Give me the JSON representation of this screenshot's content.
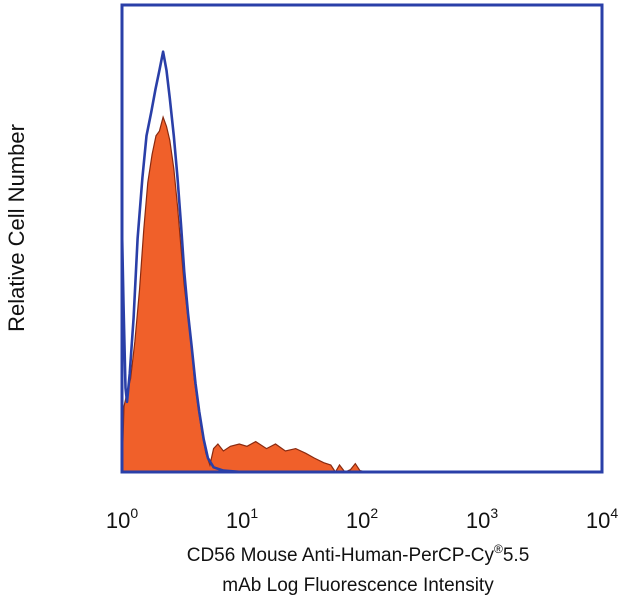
{
  "chart_data": {
    "type": "histogram-overlay",
    "ylabel": "Relative Cell Number",
    "xlabel_line1_main": "CD56 Mouse Anti-Human-PerCP-Cy",
    "xlabel_line1_sup": "®",
    "xlabel_line1_end": "5.5",
    "xlabel_line2": "mAb Log Fluorescence Intensity",
    "x_scale": "log",
    "xlim": [
      1,
      10000
    ],
    "ylim": [
      0,
      100
    ],
    "x_ticks": [
      {
        "base": "10",
        "exp": "0",
        "value": 1
      },
      {
        "base": "10",
        "exp": "1",
        "value": 10
      },
      {
        "base": "10",
        "exp": "2",
        "value": 100
      },
      {
        "base": "10",
        "exp": "3",
        "value": 1000
      },
      {
        "base": "10",
        "exp": "4",
        "value": 10000
      }
    ],
    "grid": false,
    "series": [
      {
        "kind": "filled",
        "color": "#f0602a",
        "edge": "#8a2a10",
        "points": [
          [
            1.0,
            0
          ],
          [
            1.04,
            14
          ],
          [
            1.1,
            17
          ],
          [
            1.18,
            20
          ],
          [
            1.28,
            28
          ],
          [
            1.4,
            39
          ],
          [
            1.52,
            52
          ],
          [
            1.64,
            62
          ],
          [
            1.78,
            68
          ],
          [
            1.92,
            72
          ],
          [
            2.05,
            73
          ],
          [
            2.2,
            76
          ],
          [
            2.35,
            74
          ],
          [
            2.5,
            71
          ],
          [
            2.7,
            65
          ],
          [
            2.9,
            57
          ],
          [
            3.1,
            48
          ],
          [
            3.3,
            40
          ],
          [
            3.55,
            33
          ],
          [
            3.8,
            27
          ],
          [
            4.0,
            20
          ],
          [
            4.3,
            14
          ],
          [
            4.6,
            9
          ],
          [
            5.0,
            4
          ],
          [
            5.4,
            1.5
          ],
          [
            5.8,
            5
          ],
          [
            6.3,
            6
          ],
          [
            7.0,
            4.5
          ],
          [
            8.0,
            5.5
          ],
          [
            9.5,
            6
          ],
          [
            11,
            5.5
          ],
          [
            13,
            6.5
          ],
          [
            16,
            5
          ],
          [
            19,
            6
          ],
          [
            23,
            4.5
          ],
          [
            28,
            5
          ],
          [
            34,
            4
          ],
          [
            40,
            3
          ],
          [
            48,
            2
          ],
          [
            55,
            1.5
          ],
          [
            60,
            0
          ],
          [
            65,
            1.5
          ],
          [
            72,
            0
          ],
          [
            80,
            0.5
          ],
          [
            88,
            1.8
          ],
          [
            96,
            0.3
          ],
          [
            110,
            0
          ]
        ]
      },
      {
        "kind": "outline",
        "color": "#2a3fa8",
        "points": [
          [
            1.0,
            0
          ],
          [
            1.0,
            52
          ],
          [
            1.03,
            36
          ],
          [
            1.07,
            18
          ],
          [
            1.1,
            15
          ],
          [
            1.16,
            21
          ],
          [
            1.25,
            33
          ],
          [
            1.35,
            50
          ],
          [
            1.48,
            63
          ],
          [
            1.6,
            72
          ],
          [
            1.75,
            77
          ],
          [
            1.9,
            82
          ],
          [
            2.05,
            86
          ],
          [
            2.2,
            90
          ],
          [
            2.35,
            86
          ],
          [
            2.5,
            80
          ],
          [
            2.7,
            72
          ],
          [
            2.9,
            63
          ],
          [
            3.1,
            53
          ],
          [
            3.3,
            43
          ],
          [
            3.55,
            34
          ],
          [
            3.8,
            27
          ],
          [
            4.1,
            19
          ],
          [
            4.4,
            13
          ],
          [
            4.8,
            7
          ],
          [
            5.2,
            3
          ],
          [
            5.8,
            1
          ],
          [
            7.0,
            0.3
          ],
          [
            10,
            0
          ],
          [
            110,
            0
          ]
        ]
      }
    ]
  }
}
